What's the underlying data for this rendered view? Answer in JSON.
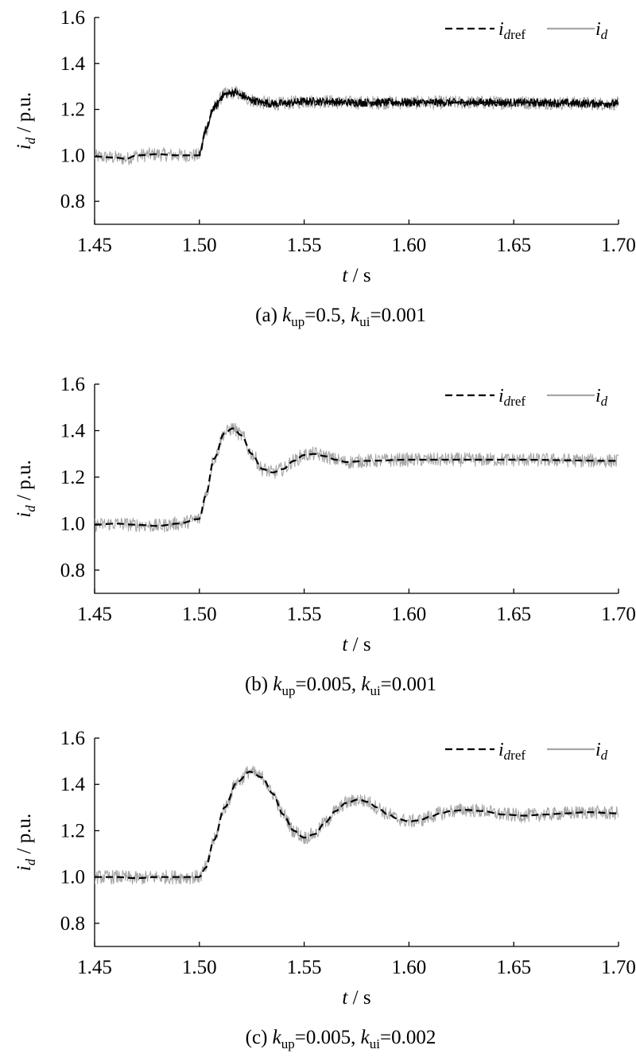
{
  "chart_data": [
    {
      "type": "line",
      "caption": {
        "label": "(a)",
        "kp_sym": "k",
        "kp_sub": "up",
        "kp_val": "=0.5,",
        "ki_sym": "k",
        "ki_sub": "ui",
        "ki_val": "=0.001"
      },
      "xlabel": {
        "sym": "t",
        "unit": " / s"
      },
      "ylabel": {
        "sym": "i",
        "sub": "d",
        "unit": " / p.u."
      },
      "xlim": [
        1.45,
        1.7
      ],
      "ylim": [
        0.7,
        1.6
      ],
      "xticks": [
        "1.45",
        "1.50",
        "1.55",
        "1.60",
        "1.65",
        "1.70"
      ],
      "yticks": [
        "0.8",
        "1.0",
        "1.2",
        "1.4",
        "1.6"
      ],
      "legend_position": "top-right",
      "step_time": 1.5,
      "series": [
        {
          "name": "i_dref",
          "label_sym": "i",
          "label_sub": "dref",
          "style": "dashed",
          "color": "#000000",
          "x": [
            1.45,
            1.46,
            1.465,
            1.47,
            1.48,
            1.49,
            1.5,
            1.503,
            1.507,
            1.512,
            1.517,
            1.52,
            1.525,
            1.53,
            1.535,
            1.54,
            1.545,
            1.55,
            1.56,
            1.57,
            1.58,
            1.6,
            1.62,
            1.65,
            1.7
          ],
          "y": [
            0.995,
            0.99,
            0.985,
            1.0,
            1.005,
            1.0,
            1.0,
            1.11,
            1.21,
            1.265,
            1.275,
            1.26,
            1.24,
            1.23,
            1.225,
            1.225,
            1.23,
            1.235,
            1.235,
            1.23,
            1.23,
            1.23,
            1.23,
            1.23,
            1.225
          ]
        },
        {
          "name": "i_d",
          "label_sym": "i",
          "label_sub": "d",
          "style": "solid",
          "color": "#a6a6a6",
          "x": [
            1.45,
            1.46,
            1.465,
            1.47,
            1.48,
            1.49,
            1.5,
            1.503,
            1.507,
            1.512,
            1.517,
            1.52,
            1.525,
            1.53,
            1.535,
            1.54,
            1.545,
            1.55,
            1.56,
            1.57,
            1.58,
            1.6,
            1.62,
            1.65,
            1.7
          ],
          "y": [
            0.995,
            0.99,
            0.985,
            1.0,
            1.005,
            1.0,
            1.0,
            1.11,
            1.21,
            1.265,
            1.275,
            1.26,
            1.24,
            1.23,
            1.225,
            1.225,
            1.23,
            1.235,
            1.235,
            1.23,
            1.23,
            1.23,
            1.23,
            1.23,
            1.225
          ],
          "noise_amplitude": 0.03
        },
        {
          "name": "i_d (dark trace)",
          "style": "solid",
          "color": "#000000",
          "x": [
            1.45,
            1.46,
            1.465,
            1.47,
            1.48,
            1.49,
            1.5,
            1.503,
            1.507,
            1.512,
            1.517,
            1.52,
            1.525,
            1.53,
            1.535,
            1.54,
            1.545,
            1.55,
            1.56,
            1.57,
            1.58,
            1.6,
            1.62,
            1.65,
            1.7
          ],
          "y": [
            0.995,
            0.99,
            0.985,
            1.0,
            1.005,
            1.0,
            1.0,
            1.11,
            1.21,
            1.265,
            1.275,
            1.26,
            1.24,
            1.23,
            1.225,
            1.225,
            1.23,
            1.235,
            1.235,
            1.23,
            1.23,
            1.23,
            1.23,
            1.23,
            1.225
          ],
          "noise_amplitude": 0.018,
          "from_x": 1.5
        }
      ]
    },
    {
      "type": "line",
      "caption": {
        "label": "(b)",
        "kp_sym": "k",
        "kp_sub": "up",
        "kp_val": "=0.005,",
        "ki_sym": "k",
        "ki_sub": "ui",
        "ki_val": "=0.001"
      },
      "xlabel": {
        "sym": "t",
        "unit": " / s"
      },
      "ylabel": {
        "sym": "i",
        "sub": "d",
        "unit": " / p.u."
      },
      "xlim": [
        1.45,
        1.7
      ],
      "ylim": [
        0.7,
        1.6
      ],
      "xticks": [
        "1.45",
        "1.50",
        "1.55",
        "1.60",
        "1.65",
        "1.70"
      ],
      "yticks": [
        "0.8",
        "1.0",
        "1.2",
        "1.4",
        "1.6"
      ],
      "legend_position": "top-right",
      "series": [
        {
          "name": "i_dref",
          "label_sym": "i",
          "label_sub": "dref",
          "style": "dashed",
          "color": "#000000",
          "x": [
            1.45,
            1.46,
            1.47,
            1.48,
            1.49,
            1.5,
            1.503,
            1.507,
            1.512,
            1.516,
            1.52,
            1.525,
            1.53,
            1.535,
            1.54,
            1.545,
            1.55,
            1.555,
            1.56,
            1.565,
            1.57,
            1.58,
            1.6,
            1.62,
            1.65,
            1.7
          ],
          "y": [
            0.995,
            1.0,
            0.995,
            0.99,
            1.0,
            1.02,
            1.12,
            1.28,
            1.39,
            1.41,
            1.38,
            1.3,
            1.235,
            1.22,
            1.235,
            1.27,
            1.295,
            1.3,
            1.29,
            1.275,
            1.265,
            1.27,
            1.275,
            1.275,
            1.275,
            1.27
          ]
        },
        {
          "name": "i_d",
          "label_sym": "i",
          "label_sub": "d",
          "style": "solid",
          "color": "#a6a6a6",
          "x": [
            1.45,
            1.46,
            1.47,
            1.48,
            1.49,
            1.5,
            1.503,
            1.507,
            1.512,
            1.516,
            1.52,
            1.525,
            1.53,
            1.535,
            1.54,
            1.545,
            1.55,
            1.555,
            1.56,
            1.565,
            1.57,
            1.58,
            1.6,
            1.62,
            1.65,
            1.7
          ],
          "y": [
            0.995,
            1.0,
            0.995,
            0.99,
            1.0,
            1.02,
            1.12,
            1.28,
            1.39,
            1.41,
            1.38,
            1.3,
            1.235,
            1.22,
            1.235,
            1.27,
            1.295,
            1.3,
            1.29,
            1.275,
            1.265,
            1.27,
            1.275,
            1.275,
            1.275,
            1.27
          ],
          "noise_amplitude": 0.03
        }
      ]
    },
    {
      "type": "line",
      "caption": {
        "label": "(c)",
        "kp_sym": "k",
        "kp_sub": "up",
        "kp_val": "=0.005,",
        "ki_sym": "k",
        "ki_sub": "ui",
        "ki_val": "=0.002"
      },
      "xlabel": {
        "sym": "t",
        "unit": " / s"
      },
      "ylabel": {
        "sym": "i",
        "sub": "d",
        "unit": " / p.u."
      },
      "xlim": [
        1.45,
        1.7
      ],
      "ylim": [
        0.7,
        1.6
      ],
      "xticks": [
        "1.45",
        "1.50",
        "1.55",
        "1.60",
        "1.65",
        "1.70"
      ],
      "yticks": [
        "0.8",
        "1.0",
        "1.2",
        "1.4",
        "1.6"
      ],
      "legend_position": "top-right",
      "series": [
        {
          "name": "i_dref",
          "label_sym": "i",
          "label_sub": "dref",
          "style": "dashed",
          "color": "#000000",
          "x": [
            1.45,
            1.46,
            1.47,
            1.48,
            1.49,
            1.5,
            1.503,
            1.507,
            1.512,
            1.518,
            1.524,
            1.53,
            1.535,
            1.54,
            1.545,
            1.55,
            1.555,
            1.56,
            1.565,
            1.57,
            1.576,
            1.58,
            1.585,
            1.59,
            1.595,
            1.6,
            1.605,
            1.61,
            1.615,
            1.62,
            1.627,
            1.635,
            1.645,
            1.655,
            1.665,
            1.675,
            1.685,
            1.7
          ],
          "y": [
            1.0,
            1.0,
            0.995,
            1.0,
            1.0,
            1.0,
            1.04,
            1.16,
            1.3,
            1.41,
            1.455,
            1.43,
            1.36,
            1.27,
            1.2,
            1.17,
            1.185,
            1.235,
            1.285,
            1.32,
            1.335,
            1.325,
            1.3,
            1.27,
            1.25,
            1.24,
            1.245,
            1.26,
            1.275,
            1.285,
            1.29,
            1.285,
            1.27,
            1.265,
            1.27,
            1.275,
            1.28,
            1.275
          ]
        },
        {
          "name": "i_d",
          "label_sym": "i",
          "label_sub": "d",
          "style": "solid",
          "color": "#a6a6a6",
          "x": [
            1.45,
            1.46,
            1.47,
            1.48,
            1.49,
            1.5,
            1.503,
            1.507,
            1.512,
            1.518,
            1.524,
            1.53,
            1.535,
            1.54,
            1.545,
            1.55,
            1.555,
            1.56,
            1.565,
            1.57,
            1.576,
            1.58,
            1.585,
            1.59,
            1.595,
            1.6,
            1.605,
            1.61,
            1.615,
            1.62,
            1.627,
            1.635,
            1.645,
            1.655,
            1.665,
            1.675,
            1.685,
            1.7
          ],
          "y": [
            1.0,
            1.0,
            0.995,
            1.0,
            1.0,
            1.0,
            1.04,
            1.16,
            1.3,
            1.41,
            1.455,
            1.43,
            1.36,
            1.27,
            1.2,
            1.17,
            1.185,
            1.235,
            1.285,
            1.32,
            1.335,
            1.325,
            1.3,
            1.27,
            1.25,
            1.24,
            1.245,
            1.26,
            1.275,
            1.285,
            1.29,
            1.285,
            1.27,
            1.265,
            1.27,
            1.275,
            1.28,
            1.275
          ],
          "noise_amplitude": 0.03
        }
      ]
    }
  ]
}
